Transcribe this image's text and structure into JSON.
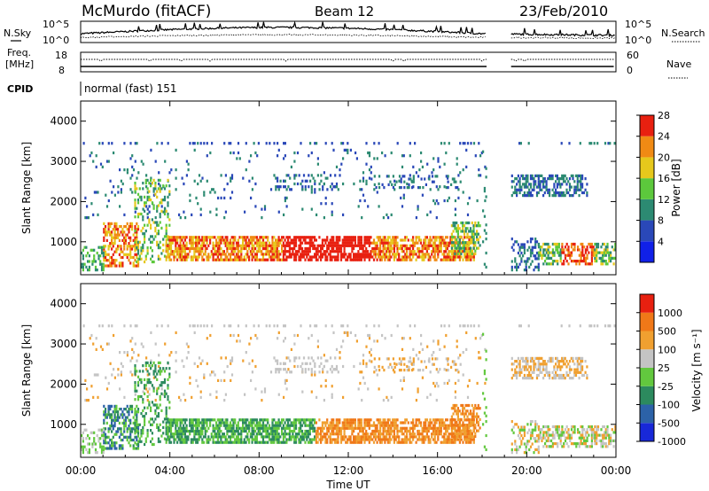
{
  "header": {
    "station": "McMurdo (fitACF)",
    "beam": "Beam 12",
    "date": "23/Feb/2010"
  },
  "top_panels": {
    "nsky_label": "N.Sky",
    "nsky_ticks": [
      "10^5",
      "10^0"
    ],
    "nsearch_label": "N.Search",
    "nsearch_ticks": [
      "10^5",
      "10^0"
    ],
    "freq_label_1": "Freq.",
    "freq_label_2": "[MHz]",
    "freq_ticks": [
      "18",
      "8"
    ],
    "nave_label": "Nave",
    "nave_ticks": [
      "60",
      "0"
    ],
    "cpid_label": "CPID",
    "cpid_value": "normal (fast) 151"
  },
  "chart_data": [
    {
      "type": "heatmap",
      "name": "power",
      "ylabel": "Slant Range [km]",
      "ylim": [
        180,
        4500
      ],
      "yticks": [
        "1000",
        "2000",
        "3000",
        "4000"
      ],
      "colorbar_label": "Power [dB]",
      "colorbar_ticks": [
        "4",
        "8",
        "12",
        "16",
        "20",
        "24",
        "28"
      ],
      "colorbar_colors": [
        "#1020e8",
        "#2a48b8",
        "#2c8a72",
        "#5cc83c",
        "#e6c81c",
        "#f08a14",
        "#e82010"
      ]
    },
    {
      "type": "heatmap",
      "name": "velocity",
      "ylabel": "Slant Range [km]",
      "ylim": [
        180,
        4500
      ],
      "yticks": [
        "1000",
        "2000",
        "3000",
        "4000"
      ],
      "colorbar_label": "Velocity [m s⁻¹]",
      "colorbar_ticks": [
        "1000",
        "500",
        "100",
        "25",
        "-25",
        "-100",
        "-500",
        "-1000"
      ],
      "colorbar_colors": [
        "#1828d8",
        "#2c62a8",
        "#2c8a5e",
        "#62c83e",
        "#c4c4c4",
        "#f0a030",
        "#f07818",
        "#e82010"
      ]
    }
  ],
  "xaxis": {
    "label": "Time UT",
    "ticks": [
      "00:00",
      "04:00",
      "08:00",
      "12:00",
      "16:00",
      "20:00",
      "00:00"
    ],
    "range_hours": [
      0,
      24
    ],
    "data_gap_hours": [
      18.2,
      19.3
    ]
  }
}
